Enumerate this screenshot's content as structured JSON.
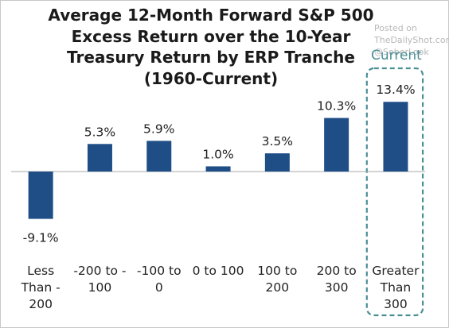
{
  "title_lines": [
    "Average 12-Month Forward S&P 500",
    "Excess Return over the 10-Year",
    "Treasury Return by ERP Tranche",
    "(1960-Current)"
  ],
  "watermark": [
    "Posted on",
    "TheDailyShot.com",
    "@SoberLook"
  ],
  "highlight_label": "Current",
  "chart_data": {
    "type": "bar",
    "title": "Average 12-Month Forward S&P 500 Excess Return over the 10-Year Treasury Return by ERP Tranche (1960-Current)",
    "categories": [
      [
        "Less",
        "Than -",
        "200"
      ],
      [
        "-200 to -",
        "100"
      ],
      [
        "-100 to",
        "0"
      ],
      [
        "0 to 100"
      ],
      [
        "100 to",
        "200"
      ],
      [
        "200 to",
        "300"
      ],
      [
        "Greater",
        "Than",
        "300"
      ]
    ],
    "values": [
      -9.1,
      5.3,
      5.9,
      1.0,
      3.5,
      10.3,
      13.4
    ],
    "value_labels": [
      "-9.1%",
      "5.3%",
      "5.9%",
      "1.0%",
      "3.5%",
      "10.3%",
      "13.4%"
    ],
    "highlight_index": 6,
    "bar_color": "#1f4e87",
    "highlight_border_color": "#4a8f96",
    "axis_color": "#aaaaaa",
    "xlabel": "",
    "ylabel": "",
    "grid": false,
    "legend": "none"
  }
}
